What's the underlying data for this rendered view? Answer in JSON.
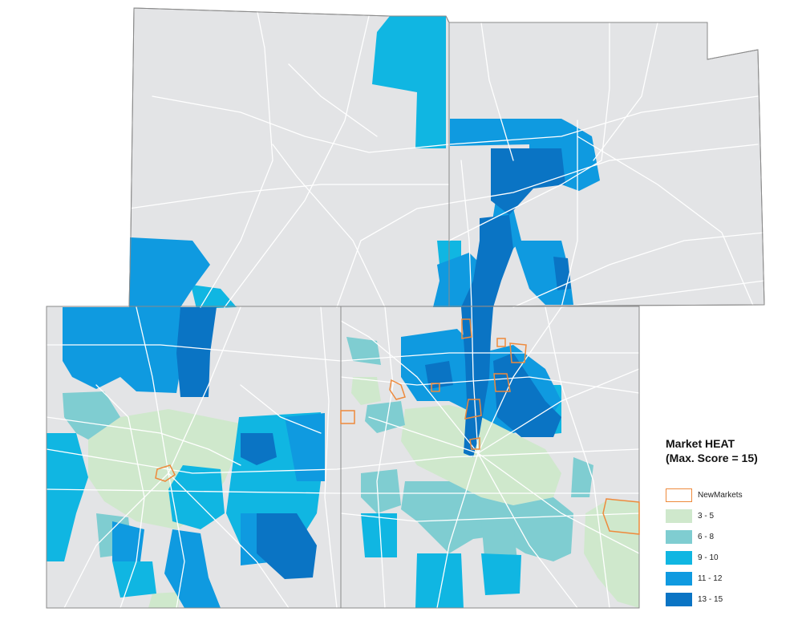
{
  "legend": {
    "title_line1": "Market HEAT",
    "title_line2": "(Max. Score = 15)",
    "items": [
      {
        "label": "NewMarkets",
        "kind": "outline",
        "color": "#ee8a3c"
      },
      {
        "label": "3 - 5",
        "kind": "fill",
        "color": "#cfe8cc"
      },
      {
        "label": "6 - 8",
        "kind": "fill",
        "color": "#7fcdd1"
      },
      {
        "label": "9 - 10",
        "kind": "fill",
        "color": "#10b6e2"
      },
      {
        "label": "11 - 12",
        "kind": "fill",
        "color": "#0f9ae0"
      },
      {
        "label": "13 - 15",
        "kind": "fill",
        "color": "#0a74c4"
      }
    ]
  },
  "colors": {
    "base": "#e3e4e6",
    "border": "#8a8a8a",
    "road": "#ffffff",
    "c35": "#cfe8cc",
    "c68": "#7fcdd1",
    "c910": "#10b6e2",
    "c1112": "#0f9ae0",
    "c1315": "#0a74c4",
    "newmarket": "#ee8a3c"
  }
}
